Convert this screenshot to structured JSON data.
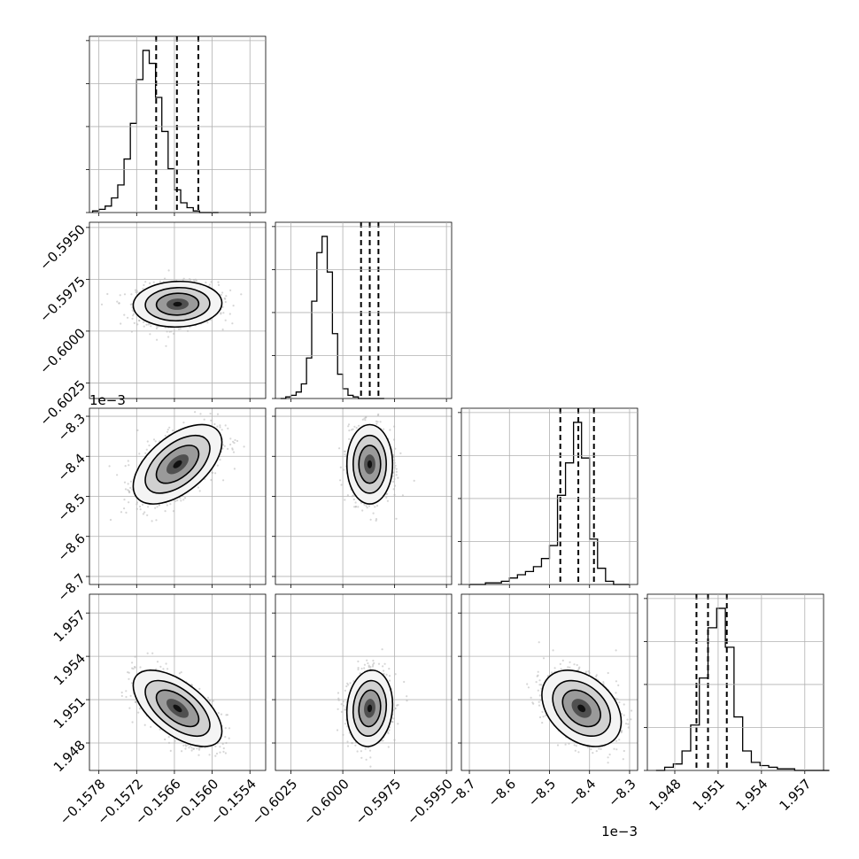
{
  "chart_data": {
    "type": "corner",
    "grid": true,
    "parameters": [
      {
        "range": [
          -0.15795,
          -0.15515
        ],
        "ticks": [
          -0.1578,
          -0.1572,
          -0.1566,
          -0.156,
          -0.1554
        ],
        "tick_labels": [
          "−0.1578",
          "−0.1572",
          "−0.1566",
          "−0.1560",
          "−0.1554"
        ],
        "offset_text": "",
        "mean": -0.15655,
        "sigma": 0.00032,
        "quantiles": [
          -0.15689,
          -0.15656,
          -0.15622
        ]
      },
      {
        "range": [
          -0.60325,
          -0.59475
        ],
        "ticks": [
          -0.6025,
          -0.6,
          -0.5975,
          -0.595
        ],
        "tick_labels": [
          "−0.6025",
          "−0.6000",
          "−0.5975",
          "−0.5950"
        ],
        "offset_text": "",
        "mean": -0.5987,
        "sigma": 0.0005,
        "quantiles": [
          -0.59912,
          -0.5987,
          -0.59828
        ]
      },
      {
        "range": [
          -8.72,
          -8.28
        ],
        "ticks": [
          -8.7,
          -8.6,
          -8.5,
          -8.4,
          -8.3
        ],
        "tick_labels": [
          "−8.7",
          "−8.6",
          "−8.5",
          "−8.4",
          "−8.3"
        ],
        "offset_text": "1e−3",
        "mean": -8.42,
        "sigma": 0.045,
        "quantiles": [
          -8.473,
          -8.428,
          -8.389
        ]
      },
      {
        "range": [
          1.9461,
          1.9583
        ],
        "ticks": [
          1.948,
          1.951,
          1.954,
          1.957
        ],
        "tick_labels": [
          "1.948",
          "1.951",
          "1.954",
          "1.957"
        ],
        "offset_text": "",
        "mean": 1.9504,
        "sigma": 0.0012,
        "quantiles": [
          1.9495,
          1.9503,
          1.9516
        ]
      }
    ],
    "histograms": [
      {
        "param": 0,
        "bin_start": -0.1579,
        "bin_width": 0.0001,
        "counts": [
          1,
          2,
          4,
          9,
          17,
          33,
          55,
          82,
          100,
          92,
          71,
          50,
          27,
          14,
          6,
          3,
          1,
          0,
          0,
          0
        ]
      },
      {
        "param": 1,
        "bin_start": -0.603,
        "bin_width": 0.00025,
        "counts": [
          0,
          1,
          2,
          4,
          9,
          25,
          60,
          90,
          100,
          78,
          40,
          15,
          6,
          2,
          1,
          0,
          0,
          0,
          0,
          0
        ]
      },
      {
        "param": 2,
        "bin_start": -8.7,
        "bin_width": 0.02,
        "counts": [
          0,
          0,
          1,
          1,
          2,
          4,
          6,
          8,
          11,
          16,
          24,
          55,
          75,
          100,
          78,
          28,
          10,
          2,
          0,
          0
        ]
      },
      {
        "param": 3,
        "bin_start": 1.9467,
        "bin_width": 0.0006,
        "counts": [
          0,
          2,
          4,
          12,
          28,
          57,
          88,
          100,
          76,
          33,
          12,
          5,
          3,
          2,
          1,
          1,
          0,
          0,
          0,
          0
        ]
      }
    ],
    "pairs": [
      {
        "x": 0,
        "y": 1,
        "correlation": 0.05
      },
      {
        "x": 0,
        "y": 2,
        "correlation": 0.55
      },
      {
        "x": 1,
        "y": 2,
        "correlation": 0.0
      },
      {
        "x": 0,
        "y": 3,
        "correlation": -0.6
      },
      {
        "x": 1,
        "y": 3,
        "correlation": 0.1
      },
      {
        "x": 2,
        "y": 3,
        "correlation": -0.35
      }
    ]
  }
}
